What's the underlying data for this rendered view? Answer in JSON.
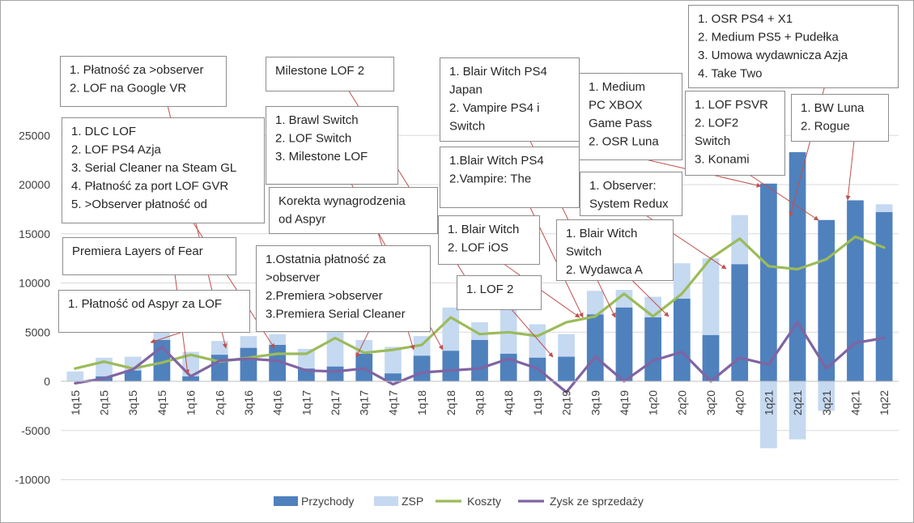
{
  "chart_data": {
    "type": "bar",
    "categories": [
      "1q15",
      "2q15",
      "3q15",
      "4q15",
      "1q16",
      "2q16",
      "3q16",
      "4q16",
      "1q17",
      "2q17",
      "3q17",
      "4q17",
      "1q18",
      "2q18",
      "3q18",
      "4q18",
      "1q19",
      "2q19",
      "3q19",
      "4q19",
      "1q20",
      "2q20",
      "3q20",
      "4q20",
      "1q21",
      "2q21",
      "3q21",
      "4q21",
      "1q22"
    ],
    "ylim": [
      -10000,
      25000
    ],
    "yticks": [
      -10000,
      -5000,
      0,
      5000,
      10000,
      15000,
      20000,
      25000
    ],
    "grid": true,
    "legend_position": "bottom",
    "series": [
      {
        "name": "Przychody",
        "kind": "bar",
        "color": "#4f81bd",
        "values": [
          0,
          500,
          1100,
          4200,
          500,
          2700,
          3400,
          3700,
          1300,
          1500,
          2800,
          800,
          2600,
          3100,
          4200,
          2800,
          2400,
          2500,
          6800,
          7500,
          6500,
          8400,
          4700,
          11900,
          20100,
          23300,
          16400,
          18400,
          17200
        ]
      },
      {
        "name": "ZSP",
        "kind": "bar",
        "color": "#c5d9f1",
        "values": [
          1000,
          2400,
          2500,
          5100,
          3000,
          4100,
          4600,
          4800,
          3300,
          5000,
          4200,
          3500,
          4600,
          7500,
          6000,
          7500,
          5800,
          4800,
          9200,
          9300,
          8600,
          12000,
          12500,
          16900,
          -6800,
          -5900,
          -3000,
          14800,
          18000
        ]
      },
      {
        "name": "Koszty",
        "kind": "line",
        "color": "#9bbb59",
        "values": [
          1300,
          2000,
          1300,
          1900,
          2700,
          2000,
          2400,
          2800,
          2800,
          4400,
          2900,
          3200,
          3700,
          6500,
          4800,
          5000,
          4600,
          6000,
          6600,
          8900,
          6600,
          8900,
          12500,
          14500,
          11700,
          11400,
          12400,
          14700,
          13600
        ]
      },
      {
        "name": "Zysk ze sprzedaży",
        "kind": "line",
        "color": "#8064a2",
        "values": [
          -200,
          300,
          1200,
          3500,
          500,
          2100,
          2300,
          2100,
          1100,
          1000,
          1300,
          -300,
          900,
          1100,
          1300,
          2300,
          1300,
          -1100,
          2500,
          0,
          2100,
          3000,
          0,
          2400,
          1700,
          6000,
          1300,
          3900,
          4400
        ]
      }
    ],
    "annotations": [
      {
        "lines": [
          "1. Płatność za >observer",
          "2. LOF na Google VR"
        ],
        "target": "3q16"
      },
      {
        "lines": [
          "1. DLC LOF",
          "2. LOF PS4 Azja",
          "3. Serial Cleaner na Steam GL",
          "4. Płatność za port LOF GVR",
          "5. >Observer płatność od"
        ],
        "target": "4q16"
      },
      {
        "lines": [
          "Premiera Layers of Fear"
        ],
        "target": "1q16"
      },
      {
        "lines": [
          "1. Płatność od Aspyr za  LOF"
        ],
        "target": "4q15"
      },
      {
        "lines": [
          "Milestone LOF 2"
        ],
        "target": "3q18"
      },
      {
        "lines": [
          "1. Brawl Switch",
          "2. LOF Switch",
          "3.  Milestone LOF"
        ],
        "target": "2q18"
      },
      {
        "lines": [
          "Korekta wynagrodzenia",
          "od Aspyr"
        ],
        "target": "1q18"
      },
      {
        "lines": [
          "1.Ostatnia płatność za",
          ">observer",
          "2.Premiera >observer",
          "3.Premiera Serial Cleaner"
        ],
        "target": "3q17"
      },
      {
        "lines": [
          "1. Blair Witch PS4",
          "Japan",
          "2. Vampire PS4 i",
          "Switch"
        ],
        "target": "4q19"
      },
      {
        "lines": [
          "1.Blair Witch PS4",
          "2.Vampire: The"
        ],
        "target": "3q19"
      },
      {
        "lines": [
          "1. Blair Witch",
          "2. LOF iOS"
        ],
        "target": "3q19"
      },
      {
        "lines": [
          "1. LOF 2"
        ],
        "target": "1q19"
      },
      {
        "lines": [
          "1. Medium",
          "PC XBOX",
          "Game Pass",
          "2. OSR Luna"
        ],
        "target": "1q21"
      },
      {
        "lines": [
          "1. Observer:",
          "System Redux"
        ],
        "target": "4q20"
      },
      {
        "lines": [
          "1. Blair Witch",
          "Switch",
          "2. Wydawca A"
        ],
        "target": "2q20"
      },
      {
        "lines": [
          "1. OSR PS4 + X1",
          "2. Medium PS5 + Pudełka",
          "3. Umowa wydawnicza Azja",
          "4. Take Two"
        ],
        "target": "2q21"
      },
      {
        "lines": [
          "1. LOF PSVR",
          "2. LOF2",
          "Switch",
          "3. Konami"
        ],
        "target": "3q21"
      },
      {
        "lines": [
          "1. BW Luna",
          "2.  Rogue"
        ],
        "target": "4q21"
      }
    ]
  }
}
